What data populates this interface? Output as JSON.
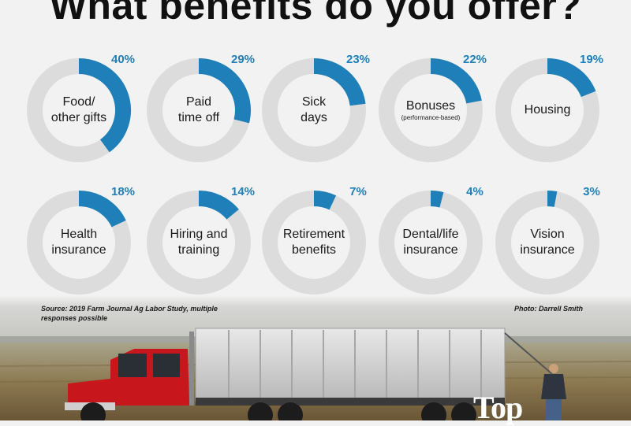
{
  "title": "What benefits do you offer?",
  "source_note": "Source: 2019 Farm Journal Ag Labor Study, multiple responses possible",
  "photo_credit": "Photo: Darrell Smith",
  "logo_text": "Top",
  "colors": {
    "ring": "#dcdcdc",
    "fill": "#1f7fb8",
    "background": "#f2f2f2"
  },
  "chart_data": {
    "type": "pie",
    "title": "What benefits do you offer?",
    "unit": "%",
    "categories": [
      {
        "lines": [
          "Food/",
          "other gifts"
        ],
        "value": 40,
        "label": "40%"
      },
      {
        "lines": [
          "Paid",
          "time off"
        ],
        "value": 29,
        "label": "29%"
      },
      {
        "lines": [
          "Sick",
          "days"
        ],
        "value": 23,
        "label": "23%"
      },
      {
        "lines": [
          "Bonuses"
        ],
        "sub": "(performance-based)",
        "value": 22,
        "label": "22%"
      },
      {
        "lines": [
          "Housing"
        ],
        "value": 19,
        "label": "19%"
      },
      {
        "lines": [
          "Health",
          "insurance"
        ],
        "value": 18,
        "label": "18%"
      },
      {
        "lines": [
          "Hiring and",
          "training"
        ],
        "value": 14,
        "label": "14%"
      },
      {
        "lines": [
          "Retirement",
          "benefits"
        ],
        "value": 7,
        "label": "7%"
      },
      {
        "lines": [
          "Dental/life",
          "insurance"
        ],
        "value": 4,
        "label": "4%"
      },
      {
        "lines": [
          "Vision",
          "insurance"
        ],
        "value": 3,
        "label": "3%"
      }
    ]
  }
}
